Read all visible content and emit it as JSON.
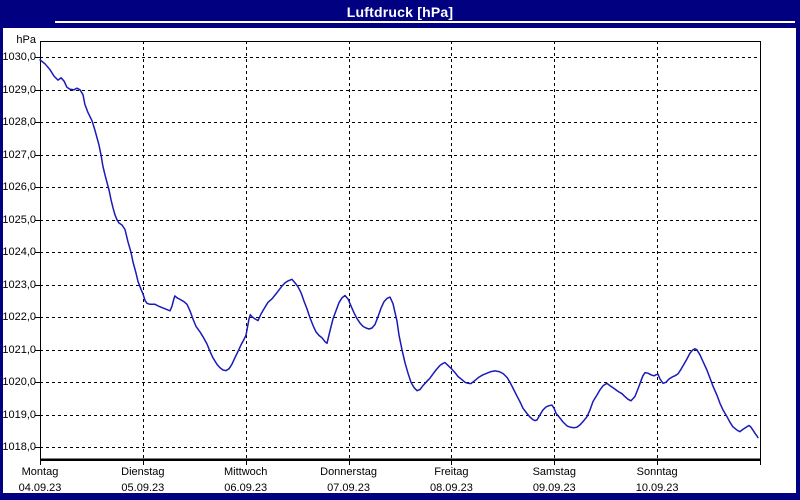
{
  "window": {
    "title": "Luftdruck [hPa]"
  },
  "colors": {
    "frame": "#000080",
    "titlebar_text": "#ffffff",
    "plot_background": "#ffffff",
    "grid": "#000000",
    "series_line": "#1a1ab8"
  },
  "chart_data": {
    "type": "line",
    "title": "Luftdruck [hPa]",
    "unit_label": "hPa",
    "xlabel": "",
    "ylabel": "hPa",
    "grid": "dashed",
    "legend": "none",
    "ylim": [
      1018.0,
      1030.0
    ],
    "yticks": [
      {
        "value": 1030,
        "label": "1030,0"
      },
      {
        "value": 1029,
        "label": "1029,0"
      },
      {
        "value": 1028,
        "label": "1028,0"
      },
      {
        "value": 1027,
        "label": "1027,0"
      },
      {
        "value": 1026,
        "label": "1026,0"
      },
      {
        "value": 1025,
        "label": "1025,0"
      },
      {
        "value": 1024,
        "label": "1024,0"
      },
      {
        "value": 1023,
        "label": "1023,0"
      },
      {
        "value": 1022,
        "label": "1022,0"
      },
      {
        "value": 1021,
        "label": "1021,0"
      },
      {
        "value": 1020,
        "label": "1020,0"
      },
      {
        "value": 1019,
        "label": "1019,0"
      },
      {
        "value": 1018,
        "label": "1018,0"
      }
    ],
    "days": [
      {
        "name": "Montag",
        "date": "04.09.23"
      },
      {
        "name": "Dienstag",
        "date": "05.09.23"
      },
      {
        "name": "Mittwoch",
        "date": "06.09.23"
      },
      {
        "name": "Donnerstag",
        "date": "07.09.23"
      },
      {
        "name": "Freitag",
        "date": "08.09.23"
      },
      {
        "name": "Samstag",
        "date": "09.09.23"
      },
      {
        "name": "Sonntag",
        "date": "10.09.23"
      }
    ],
    "series": [
      {
        "name": "Luftdruck",
        "unit": "hPa",
        "x_unit": "days_since_monday_0409",
        "points": [
          [
            0.0,
            1029.92
          ],
          [
            0.049,
            1029.8
          ],
          [
            0.097,
            1029.62
          ],
          [
            0.136,
            1029.42
          ],
          [
            0.175,
            1029.3
          ],
          [
            0.204,
            1029.37
          ],
          [
            0.233,
            1029.27
          ],
          [
            0.262,
            1029.08
          ],
          [
            0.292,
            1029.02
          ],
          [
            0.331,
            1029.0
          ],
          [
            0.36,
            1029.05
          ],
          [
            0.389,
            1029.0
          ],
          [
            0.418,
            1028.85
          ],
          [
            0.437,
            1028.55
          ],
          [
            0.467,
            1028.3
          ],
          [
            0.506,
            1028.05
          ],
          [
            0.535,
            1027.75
          ],
          [
            0.574,
            1027.3
          ],
          [
            0.593,
            1027.0
          ],
          [
            0.612,
            1026.65
          ],
          [
            0.632,
            1026.38
          ],
          [
            0.651,
            1026.15
          ],
          [
            0.671,
            1025.92
          ],
          [
            0.69,
            1025.62
          ],
          [
            0.71,
            1025.37
          ],
          [
            0.729,
            1025.15
          ],
          [
            0.749,
            1025.0
          ],
          [
            0.768,
            1024.9
          ],
          [
            0.797,
            1024.84
          ],
          [
            0.826,
            1024.7
          ],
          [
            0.856,
            1024.32
          ],
          [
            0.885,
            1024.0
          ],
          [
            0.904,
            1023.7
          ],
          [
            0.933,
            1023.36
          ],
          [
            0.953,
            1023.1
          ],
          [
            0.982,
            1022.86
          ],
          [
            1.001,
            1022.72
          ],
          [
            1.021,
            1022.52
          ],
          [
            1.04,
            1022.43
          ],
          [
            1.069,
            1022.4
          ],
          [
            1.118,
            1022.4
          ],
          [
            1.147,
            1022.35
          ],
          [
            1.186,
            1022.3
          ],
          [
            1.225,
            1022.25
          ],
          [
            1.264,
            1022.2
          ],
          [
            1.283,
            1022.34
          ],
          [
            1.303,
            1022.58
          ],
          [
            1.312,
            1022.66
          ],
          [
            1.332,
            1022.6
          ],
          [
            1.361,
            1022.55
          ],
          [
            1.4,
            1022.48
          ],
          [
            1.429,
            1022.4
          ],
          [
            1.458,
            1022.2
          ],
          [
            1.487,
            1021.95
          ],
          [
            1.517,
            1021.72
          ],
          [
            1.556,
            1021.55
          ],
          [
            1.585,
            1021.4
          ],
          [
            1.624,
            1021.18
          ],
          [
            1.653,
            1020.95
          ],
          [
            1.682,
            1020.75
          ],
          [
            1.721,
            1020.55
          ],
          [
            1.75,
            1020.45
          ],
          [
            1.779,
            1020.38
          ],
          [
            1.808,
            1020.36
          ],
          [
            1.838,
            1020.42
          ],
          [
            1.867,
            1020.56
          ],
          [
            1.896,
            1020.76
          ],
          [
            1.925,
            1020.95
          ],
          [
            1.954,
            1021.15
          ],
          [
            1.983,
            1021.32
          ],
          [
            2.003,
            1021.45
          ],
          [
            2.032,
            1021.95
          ],
          [
            2.045,
            1022.08
          ],
          [
            2.061,
            1022.02
          ],
          [
            2.09,
            1021.95
          ],
          [
            2.119,
            1021.9
          ],
          [
            2.149,
            1022.1
          ],
          [
            2.178,
            1022.26
          ],
          [
            2.217,
            1022.46
          ],
          [
            2.256,
            1022.57
          ],
          [
            2.304,
            1022.76
          ],
          [
            2.353,
            1022.96
          ],
          [
            2.382,
            1023.06
          ],
          [
            2.411,
            1023.12
          ],
          [
            2.45,
            1023.17
          ],
          [
            2.479,
            1023.06
          ],
          [
            2.508,
            1022.94
          ],
          [
            2.538,
            1022.75
          ],
          [
            2.567,
            1022.5
          ],
          [
            2.596,
            1022.26
          ],
          [
            2.625,
            1021.98
          ],
          [
            2.654,
            1021.75
          ],
          [
            2.683,
            1021.55
          ],
          [
            2.713,
            1021.44
          ],
          [
            2.742,
            1021.37
          ],
          [
            2.771,
            1021.25
          ],
          [
            2.79,
            1021.2
          ],
          [
            2.82,
            1021.6
          ],
          [
            2.849,
            1021.95
          ],
          [
            2.878,
            1022.2
          ],
          [
            2.907,
            1022.45
          ],
          [
            2.936,
            1022.6
          ],
          [
            2.965,
            1022.67
          ],
          [
            2.995,
            1022.56
          ],
          [
            3.024,
            1022.35
          ],
          [
            3.053,
            1022.14
          ],
          [
            3.082,
            1021.96
          ],
          [
            3.111,
            1021.82
          ],
          [
            3.14,
            1021.72
          ],
          [
            3.169,
            1021.67
          ],
          [
            3.199,
            1021.64
          ],
          [
            3.228,
            1021.67
          ],
          [
            3.257,
            1021.78
          ],
          [
            3.286,
            1022.02
          ],
          [
            3.315,
            1022.28
          ],
          [
            3.344,
            1022.48
          ],
          [
            3.374,
            1022.58
          ],
          [
            3.403,
            1022.62
          ],
          [
            3.432,
            1022.42
          ],
          [
            3.451,
            1022.15
          ],
          [
            3.471,
            1021.88
          ],
          [
            3.49,
            1021.45
          ],
          [
            3.519,
            1021.0
          ],
          [
            3.549,
            1020.6
          ],
          [
            3.578,
            1020.28
          ],
          [
            3.607,
            1020.0
          ],
          [
            3.636,
            1019.84
          ],
          [
            3.665,
            1019.74
          ],
          [
            3.694,
            1019.78
          ],
          [
            3.724,
            1019.9
          ],
          [
            3.762,
            1020.03
          ],
          [
            3.792,
            1020.13
          ],
          [
            3.821,
            1020.26
          ],
          [
            3.85,
            1020.38
          ],
          [
            3.889,
            1020.52
          ],
          [
            3.918,
            1020.58
          ],
          [
            3.937,
            1020.61
          ],
          [
            3.967,
            1020.52
          ],
          [
            3.996,
            1020.43
          ],
          [
            4.035,
            1020.3
          ],
          [
            4.064,
            1020.18
          ],
          [
            4.103,
            1020.08
          ],
          [
            4.132,
            1020.0
          ],
          [
            4.161,
            1019.97
          ],
          [
            4.19,
            1019.96
          ],
          [
            4.229,
            1020.06
          ],
          [
            4.268,
            1020.16
          ],
          [
            4.307,
            1020.23
          ],
          [
            4.346,
            1020.28
          ],
          [
            4.385,
            1020.33
          ],
          [
            4.424,
            1020.35
          ],
          [
            4.463,
            1020.33
          ],
          [
            4.501,
            1020.27
          ],
          [
            4.54,
            1020.15
          ],
          [
            4.569,
            1020.0
          ],
          [
            4.599,
            1019.82
          ],
          [
            4.637,
            1019.58
          ],
          [
            4.667,
            1019.4
          ],
          [
            4.696,
            1019.2
          ],
          [
            4.735,
            1019.04
          ],
          [
            4.764,
            1018.93
          ],
          [
            4.793,
            1018.85
          ],
          [
            4.812,
            1018.82
          ],
          [
            4.832,
            1018.84
          ],
          [
            4.861,
            1019.0
          ],
          [
            4.89,
            1019.15
          ],
          [
            4.919,
            1019.24
          ],
          [
            4.948,
            1019.28
          ],
          [
            4.978,
            1019.3
          ],
          [
            4.998,
            1019.2
          ],
          [
            5.017,
            1019.05
          ],
          [
            5.056,
            1018.9
          ],
          [
            5.085,
            1018.78
          ],
          [
            5.124,
            1018.66
          ],
          [
            5.153,
            1018.62
          ],
          [
            5.192,
            1018.6
          ],
          [
            5.221,
            1018.62
          ],
          [
            5.25,
            1018.69
          ],
          [
            5.279,
            1018.79
          ],
          [
            5.318,
            1018.94
          ],
          [
            5.347,
            1019.15
          ],
          [
            5.376,
            1019.41
          ],
          [
            5.415,
            1019.61
          ],
          [
            5.444,
            1019.77
          ],
          [
            5.473,
            1019.89
          ],
          [
            5.512,
            1019.97
          ],
          [
            5.541,
            1019.9
          ],
          [
            5.59,
            1019.79
          ],
          [
            5.619,
            1019.72
          ],
          [
            5.658,
            1019.65
          ],
          [
            5.687,
            1019.56
          ],
          [
            5.716,
            1019.48
          ],
          [
            5.746,
            1019.43
          ],
          [
            5.784,
            1019.56
          ],
          [
            5.804,
            1019.72
          ],
          [
            5.823,
            1019.87
          ],
          [
            5.843,
            1020.05
          ],
          [
            5.862,
            1020.2
          ],
          [
            5.882,
            1020.3
          ],
          [
            5.911,
            1020.28
          ],
          [
            5.94,
            1020.23
          ],
          [
            5.969,
            1020.2
          ],
          [
            5.989,
            1020.23
          ],
          [
            6.008,
            1020.25
          ],
          [
            6.028,
            1020.1
          ],
          [
            6.057,
            1019.97
          ],
          [
            6.086,
            1020.0
          ],
          [
            6.115,
            1020.1
          ],
          [
            6.144,
            1020.16
          ],
          [
            6.173,
            1020.2
          ],
          [
            6.203,
            1020.26
          ],
          [
            6.232,
            1020.4
          ],
          [
            6.261,
            1020.56
          ],
          [
            6.29,
            1020.72
          ],
          [
            6.319,
            1020.9
          ],
          [
            6.348,
            1021.0
          ],
          [
            6.368,
            1021.03
          ],
          [
            6.387,
            1021.0
          ],
          [
            6.416,
            1020.85
          ],
          [
            6.446,
            1020.64
          ],
          [
            6.484,
            1020.38
          ],
          [
            6.514,
            1020.13
          ],
          [
            6.543,
            1019.88
          ],
          [
            6.582,
            1019.6
          ],
          [
            6.611,
            1019.35
          ],
          [
            6.64,
            1019.15
          ],
          [
            6.679,
            1018.94
          ],
          [
            6.708,
            1018.77
          ],
          [
            6.737,
            1018.63
          ],
          [
            6.776,
            1018.53
          ],
          [
            6.805,
            1018.48
          ],
          [
            6.834,
            1018.55
          ],
          [
            6.873,
            1018.63
          ],
          [
            6.893,
            1018.67
          ],
          [
            6.912,
            1018.62
          ],
          [
            6.931,
            1018.53
          ],
          [
            6.951,
            1018.43
          ],
          [
            6.97,
            1018.35
          ],
          [
            6.98,
            1018.3
          ]
        ]
      }
    ]
  }
}
